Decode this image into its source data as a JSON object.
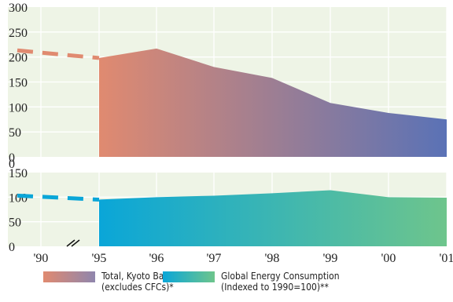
{
  "chart_data": [
    {
      "type": "area",
      "title": "",
      "xlabel": "",
      "ylabel": "",
      "x": [
        "1990",
        "1995",
        "1996",
        "1997",
        "1998",
        "1999",
        "2000",
        "2001"
      ],
      "series": [
        {
          "name": "Total, Kyoto Basis (excludes CFCs)*",
          "values": [
            210,
            198,
            217,
            180,
            158,
            108,
            88,
            75
          ],
          "color_start": "#e08a70",
          "color_end": "#5a72b6"
        }
      ],
      "dashed_interval": [
        "1990",
        "1995"
      ],
      "ylim": [
        0,
        300
      ],
      "yticks": [
        "0",
        "50",
        "100",
        "150",
        "200",
        "250",
        "300"
      ],
      "grid": true
    },
    {
      "type": "area",
      "title": "",
      "xlabel": "",
      "ylabel": "",
      "x": [
        "1990",
        "1995",
        "1996",
        "1997",
        "1998",
        "1999",
        "2000",
        "2001"
      ],
      "series": [
        {
          "name": "Global Energy Consumption (Indexed to 1990=100)**",
          "values": [
            100,
            95,
            100,
            103,
            108,
            114,
            100,
            99
          ],
          "color_start": "#0aa6d8",
          "color_end": "#6ec58c"
        }
      ],
      "dashed_interval": [
        "1990",
        "1995"
      ],
      "ylim": [
        0,
        150
      ],
      "yticks": [
        "0",
        "50",
        "100",
        "150"
      ],
      "grid": true
    }
  ],
  "xtick_labels": [
    "'90",
    "'95",
    "'96",
    "'97",
    "'98",
    "'99",
    "'00",
    "'01"
  ],
  "axis_break": "//",
  "legend": [
    {
      "line1": "Total, Kyoto Basis",
      "line2": "(excludes CFCs)*",
      "color_start": "#e08a70",
      "color_end": "#8f86ad"
    },
    {
      "line1": "Global Energy Consumption",
      "line2": "(Indexed to 1990=100)**",
      "color_start": "#0aa6d8",
      "color_end": "#6ec58c"
    }
  ],
  "colors": {
    "panel_bg": "#eef4e6",
    "grid": "#ffffff",
    "text": "#222222"
  }
}
